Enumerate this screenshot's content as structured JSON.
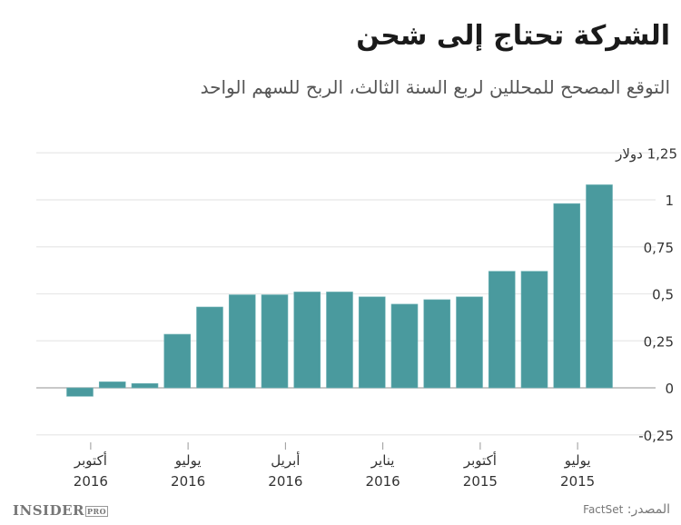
{
  "chart_data": {
    "type": "bar",
    "title": "الشركة تحتاج إلى شحن",
    "subtitle": "التوقع المصحح للمحللين لربع السنة الثالث، الربح للسهم الواحد",
    "ylabel_unit": "دولار",
    "ylim": [
      -0.25,
      1.25
    ],
    "yticks": [
      {
        "value": 1.25,
        "label": "1,25"
      },
      {
        "value": 1,
        "label": "1"
      },
      {
        "value": 0.75,
        "label": "0,75"
      },
      {
        "value": 0.5,
        "label": "0,5"
      },
      {
        "value": 0.25,
        "label": "0,25"
      },
      {
        "value": 0,
        "label": "0"
      },
      {
        "value": -0.25,
        "label": "-0,25"
      }
    ],
    "grid": true,
    "color": "#4a9a9e",
    "values": [
      -0.045,
      0.032,
      0.023,
      0.285,
      0.43,
      0.495,
      0.495,
      0.51,
      0.51,
      0.484,
      0.445,
      0.469,
      0.484,
      0.62,
      0.62,
      0.98,
      1.08
    ],
    "xticks": [
      {
        "month": "أكتوبر",
        "year": "2016"
      },
      {
        "month": "يوليو",
        "year": "2016"
      },
      {
        "month": "أبريل",
        "year": "2016"
      },
      {
        "month": "يناير",
        "year": "2016"
      },
      {
        "month": "أكتوبر",
        "year": "2015"
      },
      {
        "month": "يوليو",
        "year": "2015"
      }
    ]
  },
  "footer": {
    "logo": "INSIDER",
    "logo_suffix": "PRO",
    "source_label": "المصدر:",
    "source": "FactSet"
  }
}
